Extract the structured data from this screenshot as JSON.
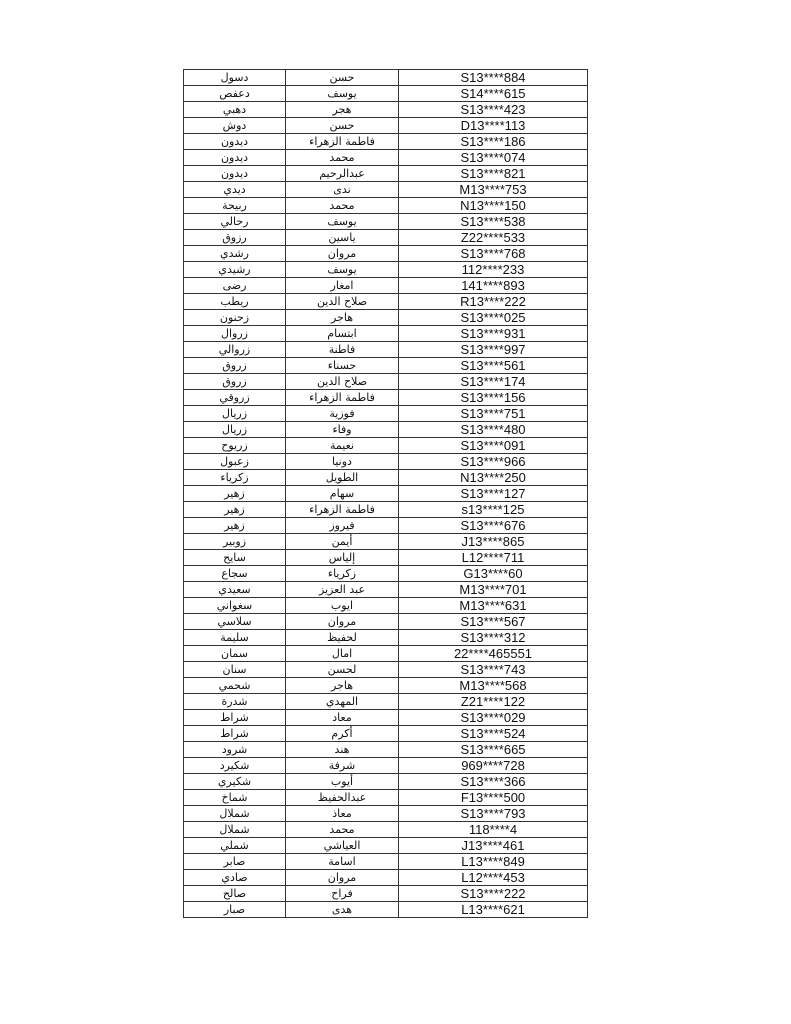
{
  "table": {
    "rows": [
      [
        "دسول",
        "حسن",
        "S13****884"
      ],
      [
        "دعفص",
        "يوسف",
        "S14****615"
      ],
      [
        "دهبي",
        "هجر",
        "S13****423"
      ],
      [
        "دوش",
        "حسن",
        "D13****113"
      ],
      [
        "ديدون",
        "فاطمة الزهراء",
        "S13****186"
      ],
      [
        "ديدون",
        "محمد",
        "S13****074"
      ],
      [
        "ديدون",
        "عبدالرحيم",
        "S13****821"
      ],
      [
        "ديدي",
        "ندى",
        "M13****753"
      ],
      [
        "ربيحة",
        "محمد",
        "N13****150"
      ],
      [
        "رحالي",
        "يوسف",
        "S13****538"
      ],
      [
        "رزوق",
        "ياسين",
        "Z22****533"
      ],
      [
        "رشدي",
        "مروان",
        "S13****768"
      ],
      [
        "رشيدي",
        "يوسف",
        "112****233"
      ],
      [
        "رضى",
        "امغار",
        "141****893"
      ],
      [
        "ريطب",
        "صلاح الدين",
        "R13****222"
      ],
      [
        "زحنون",
        "هاجر",
        "S13****025"
      ],
      [
        "زروال",
        "ابتسام",
        "S13****931"
      ],
      [
        "زروالي",
        "فاطنة",
        "S13****997"
      ],
      [
        "زروق",
        "حسناء",
        "S13****561"
      ],
      [
        "زروق",
        "صلاح الدين",
        "S13****174"
      ],
      [
        "زروقي",
        "فاطمة الزهراء",
        "S13****156"
      ],
      [
        "زريال",
        "فوزية",
        "S13****751"
      ],
      [
        "زريال",
        "وفاء",
        "S13****480"
      ],
      [
        "زريوح",
        "نعيمة",
        "S13****091"
      ],
      [
        "زعبول",
        "دونيا",
        "S13****966"
      ],
      [
        "زكرياء",
        "الطويل",
        "N13****250"
      ],
      [
        "زهير",
        "سهام",
        "S13****127"
      ],
      [
        "زهير",
        "فاطمة الزهراء",
        "s13****125"
      ],
      [
        "زهير",
        "فيروز",
        "S13****676"
      ],
      [
        "زوبير",
        "أيمن",
        "J13****865"
      ],
      [
        "سايح",
        "إلياس",
        "L12****711"
      ],
      [
        "سجاع",
        "زكرياء",
        "G13****60"
      ],
      [
        "سعيدي",
        "عبد العزيز",
        "M13****701"
      ],
      [
        "سغواني",
        "ايوب",
        "M13****631"
      ],
      [
        "سلاسي",
        "مروان",
        "S13****567"
      ],
      [
        "سليمة",
        "لحفيظ",
        "S13****312"
      ],
      [
        "سمان",
        "امال",
        "22****465551"
      ],
      [
        "سنان",
        "لحسن",
        "S13****743"
      ],
      [
        "شحمي",
        "هاجر",
        "M13****568"
      ],
      [
        "شدرة",
        "المهدي",
        "Z21****122"
      ],
      [
        "شراط",
        "معاد",
        "S13****029"
      ],
      [
        "شراط",
        "أكرم",
        "S13****524"
      ],
      [
        "شرود",
        "هند",
        "S13****665"
      ],
      [
        "شكيرد",
        "شرفة",
        "969****728"
      ],
      [
        "شكيري",
        "أيوب",
        "S13****366"
      ],
      [
        "شماخ",
        "عبدالحفيظ",
        "F13****500"
      ],
      [
        "شملال",
        "معاذ",
        "S13****793"
      ],
      [
        "شملال",
        "محمد",
        "118****4"
      ],
      [
        "شملي",
        "العياشي",
        "J13****461"
      ],
      [
        "صابر",
        "اسامة",
        "L13****849"
      ],
      [
        "صادي",
        "مروان",
        "L12****453"
      ],
      [
        "صالح",
        "فراح",
        "S13****222"
      ],
      [
        "صبار",
        "هدى",
        "L13****621"
      ]
    ]
  }
}
